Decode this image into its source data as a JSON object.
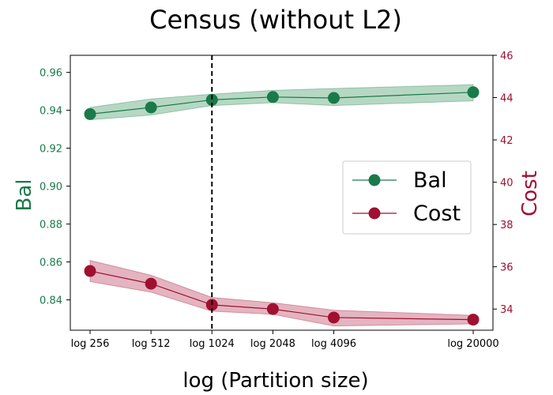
{
  "chart_data": {
    "type": "line",
    "title": "Census (without L2)",
    "xlabel": "log (Partition size)",
    "categories": [
      "log 256",
      "log 512",
      "log 1024",
      "log 2048",
      "log 4096",
      "log 20000"
    ],
    "x": [
      256,
      512,
      1024,
      2048,
      4096,
      20000
    ],
    "vline_x": 1024,
    "left_axis": {
      "label": "Bal",
      "ylim": [
        0.824,
        0.969
      ],
      "ticks": [
        0.84,
        0.86,
        0.88,
        0.9,
        0.92,
        0.94,
        0.96
      ],
      "tick_labels": [
        "0.84",
        "0.86",
        "0.88",
        "0.90",
        "0.92",
        "0.94",
        "0.96"
      ],
      "color": "#1a7a4a"
    },
    "right_axis": {
      "label": "Cost",
      "ylim": [
        33.0,
        46.0
      ],
      "ticks": [
        34,
        36,
        38,
        40,
        42,
        44,
        46
      ],
      "tick_labels": [
        "34",
        "36",
        "38",
        "40",
        "42",
        "44",
        "46"
      ],
      "color": "#a01030"
    },
    "series": [
      {
        "name": "Bal",
        "axis": "left",
        "color": "#1a7a4a",
        "fill": "#8fc3a3",
        "values": [
          0.938,
          0.9415,
          0.9455,
          0.947,
          0.9465,
          0.9495
        ],
        "lower": [
          0.935,
          0.9375,
          0.9425,
          0.944,
          0.9425,
          0.945
        ],
        "upper": [
          0.9415,
          0.946,
          0.9485,
          0.9505,
          0.9515,
          0.9535
        ]
      },
      {
        "name": "Cost",
        "axis": "right",
        "color": "#a01030",
        "fill": "#d58c9e",
        "values": [
          35.8,
          35.2,
          34.2,
          34.0,
          33.6,
          33.5
        ],
        "lower": [
          35.3,
          34.8,
          33.9,
          33.75,
          33.2,
          33.3
        ],
        "upper": [
          36.3,
          35.6,
          34.55,
          34.3,
          33.95,
          33.7
        ]
      }
    ],
    "legend": {
      "position": "center-right",
      "entries": [
        "Bal",
        "Cost"
      ]
    }
  }
}
